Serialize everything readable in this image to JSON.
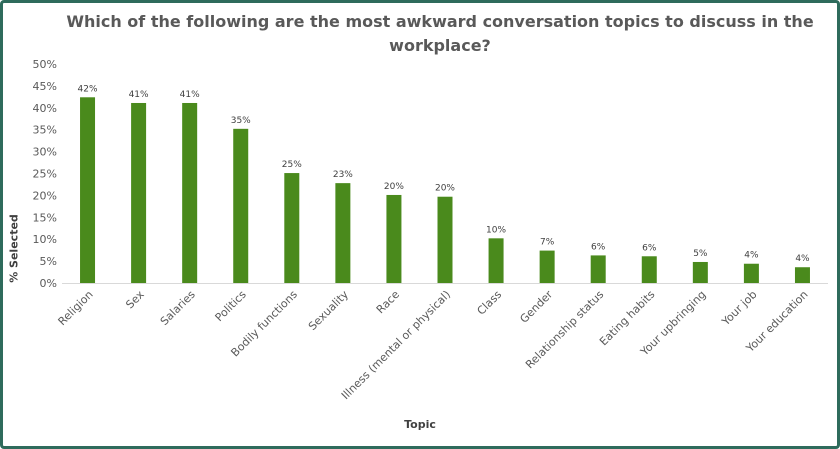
{
  "chart_data": {
    "type": "bar",
    "title": "Which of the following are the most awkward conversation topics to discuss in the workplace?",
    "xlabel": "Topic",
    "ylabel": "% Selected",
    "ylim": [
      0,
      50
    ],
    "ytick_step": 5,
    "ytick_labels": [
      "0%",
      "5%",
      "10%",
      "15%",
      "20%",
      "25%",
      "30%",
      "35%",
      "40%",
      "45%",
      "50%"
    ],
    "grid": false,
    "bar_color": "#4a8a1c",
    "categories": [
      "Religion",
      "Sex",
      "Salaries",
      "Politics",
      "Bodily functions",
      "Sexuality",
      "Race",
      "Illness (mental or physical)",
      "Class",
      "Gender",
      "Relationship status",
      "Eating habits",
      "Your upbringing",
      "Your job",
      "Your education"
    ],
    "values": [
      42.4,
      41.1,
      41.1,
      35.2,
      25.1,
      22.8,
      20.1,
      19.7,
      10.2,
      7.4,
      6.3,
      6.1,
      4.8,
      4.4,
      3.6
    ],
    "data_labels": [
      "42%",
      "41%",
      "41%",
      "35%",
      "25%",
      "23%",
      "20%",
      "20%",
      "10%",
      "7%",
      "6%",
      "6%",
      "5%",
      "4%",
      "4%"
    ]
  }
}
